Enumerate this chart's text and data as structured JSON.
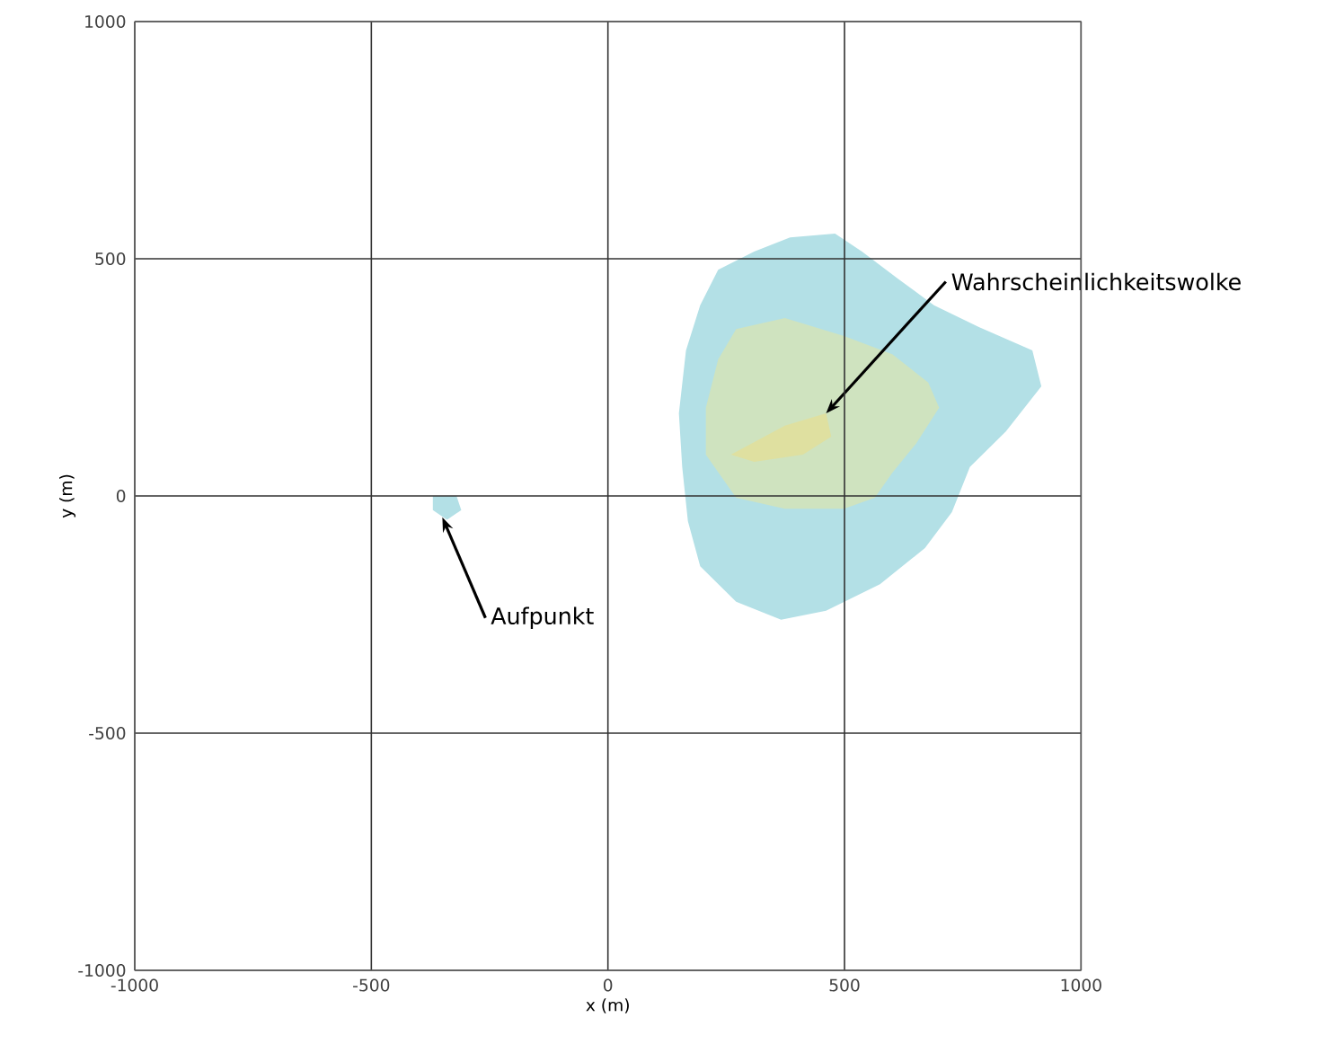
{
  "chart_data": {
    "type": "area",
    "xlabel": "x (m)",
    "ylabel": "y (m)",
    "xlim": [
      -1000,
      1000
    ],
    "ylim": [
      -1000,
      1000
    ],
    "xticks": [
      -1000,
      -500,
      0,
      500,
      1000
    ],
    "yticks": [
      -1000,
      -500,
      0,
      500,
      1000
    ],
    "grid": true,
    "series": [
      {
        "color": "#b3e0e6",
        "x": [
          195,
          233,
          309,
          385,
          480,
          537,
          613,
          689,
          784,
          897,
          916,
          841,
          765,
          727,
          670,
          575,
          461,
          366,
          271,
          195,
          169,
          157,
          150,
          165
        ],
        "values": [
          402,
          477,
          515,
          545,
          553,
          515,
          458,
          402,
          356,
          307,
          231,
          136,
          61,
          -34,
          -110,
          -186,
          -242,
          -261,
          -223,
          -148,
          -53,
          61,
          174,
          307
        ]
      },
      {
        "color": "#cfe3bf",
        "x": [
          271,
          374,
          499,
          601,
          677,
          700,
          651,
          601,
          564,
          499,
          374,
          271,
          207,
          207,
          233
        ],
        "values": [
          352,
          375,
          337,
          299,
          239,
          186,
          110,
          49,
          -4,
          -27,
          -27,
          -4,
          87,
          186,
          288
        ]
      },
      {
        "color": "#dfe0a0",
        "x": [
          260,
          374,
          461,
          472,
          412,
          309
        ],
        "values": [
          87,
          148,
          174,
          125,
          87,
          72
        ]
      },
      {
        "color": "#b3e0e6",
        "x": [
          -370,
          -320,
          -310,
          -340,
          -370
        ],
        "values": [
          0,
          0,
          -30,
          -50,
          -30
        ]
      }
    ],
    "annotations": [
      {
        "text": "Wahrscheinlichkeitswolke",
        "x": 461,
        "y": 174
      },
      {
        "text": "Aufpunkt",
        "x": -350,
        "y": -45
      }
    ]
  }
}
